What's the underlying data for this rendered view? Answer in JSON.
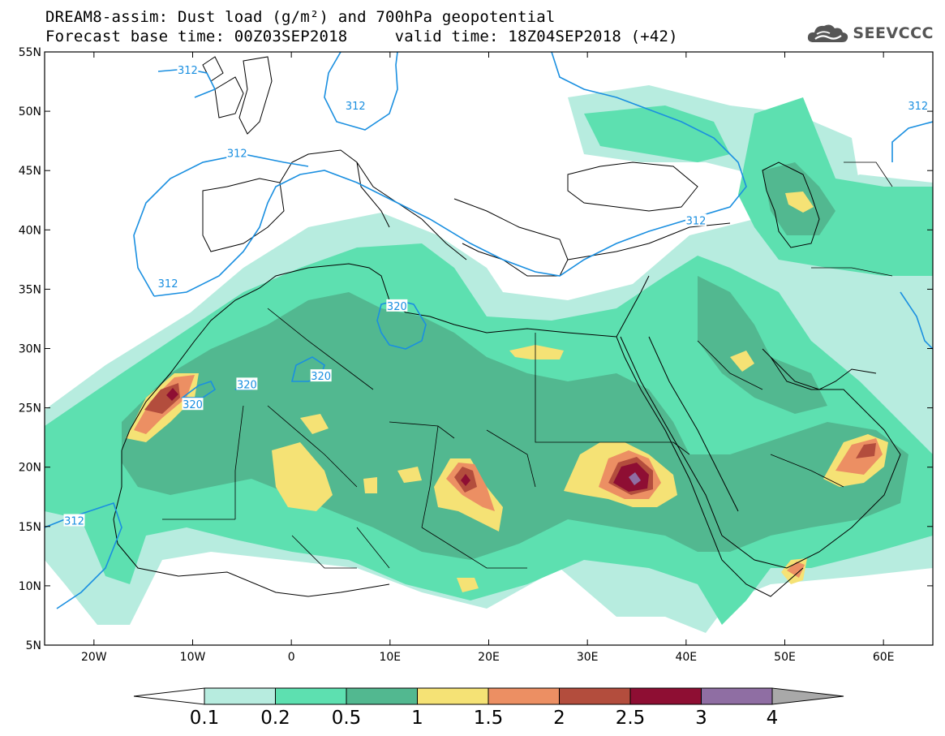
{
  "title_line1": "DREAM8-assim: Dust load (g/m²) and 700hPa geopotential",
  "title_line2": "Forecast base time: 00Z03SEP2018     valid time: 18Z04SEP2018 (+42)",
  "logo_text": "SEEVCCC",
  "colors": {
    "land_outline": "#000000",
    "geopotential_contour": "#1a8fe0",
    "bins": [
      "#b7ecdf",
      "#5de0b0",
      "#52b890",
      "#f5e275",
      "#ec8f63",
      "#b34d3d",
      "#8e0e33",
      "#8f6ea3"
    ],
    "overflow": "#a9a9a9"
  },
  "chart_data": {
    "type": "map",
    "variable": "Dust load (g/m²)",
    "overlay": "700hPa geopotential",
    "lon_range": [
      -25,
      65
    ],
    "lat_range": [
      5,
      55
    ],
    "x_ticks": [
      {
        "lon": -20,
        "label": "20W"
      },
      {
        "lon": -10,
        "label": "10W"
      },
      {
        "lon": 0,
        "label": "0"
      },
      {
        "lon": 10,
        "label": "10E"
      },
      {
        "lon": 20,
        "label": "20E"
      },
      {
        "lon": 30,
        "label": "30E"
      },
      {
        "lon": 40,
        "label": "40E"
      },
      {
        "lon": 50,
        "label": "50E"
      },
      {
        "lon": 60,
        "label": "60E"
      }
    ],
    "y_ticks": [
      {
        "lat": 5,
        "label": "5N"
      },
      {
        "lat": 10,
        "label": "10N"
      },
      {
        "lat": 15,
        "label": "15N"
      },
      {
        "lat": 20,
        "label": "20N"
      },
      {
        "lat": 25,
        "label": "25N"
      },
      {
        "lat": 30,
        "label": "30N"
      },
      {
        "lat": 35,
        "label": "35N"
      },
      {
        "lat": 40,
        "label": "40N"
      },
      {
        "lat": 45,
        "label": "45N"
      },
      {
        "lat": 50,
        "label": "50N"
      },
      {
        "lat": 55,
        "label": "55N"
      }
    ],
    "colorbar_levels": [
      "0.1",
      "0.2",
      "0.5",
      "1",
      "1.5",
      "2",
      "2.5",
      "3",
      "4"
    ],
    "contour_labels": [
      {
        "text": "312",
        "lon": -22,
        "lat": 15.5
      },
      {
        "text": "312",
        "lon": -12.5,
        "lat": 35.5
      },
      {
        "text": "312",
        "lon": -5.5,
        "lat": 46.5
      },
      {
        "text": "312",
        "lon": -10.5,
        "lat": 53.5
      },
      {
        "text": "312",
        "lon": 6.5,
        "lat": 50.5
      },
      {
        "text": "312",
        "lon": 41,
        "lat": 40.8
      },
      {
        "text": "312",
        "lon": 63.5,
        "lat": 50.5
      },
      {
        "text": "320",
        "lon": 10.7,
        "lat": 33.6
      },
      {
        "text": "320",
        "lon": 3,
        "lat": 27.7
      },
      {
        "text": "320",
        "lon": -4.5,
        "lat": 27
      },
      {
        "text": "320",
        "lon": -10,
        "lat": 25.3
      }
    ]
  }
}
